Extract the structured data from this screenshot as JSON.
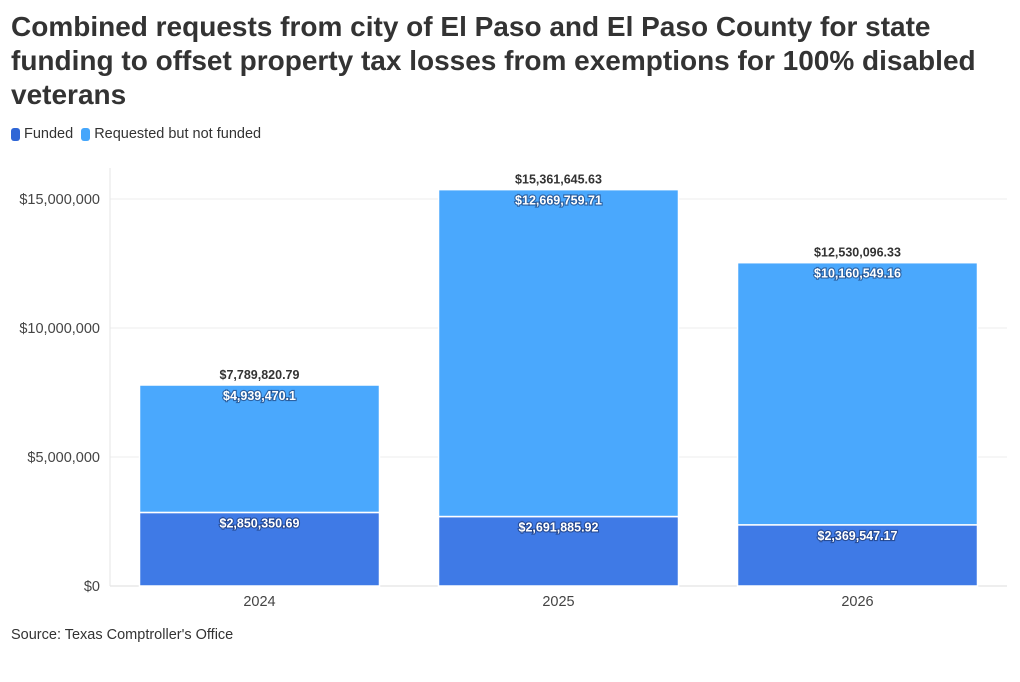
{
  "chart_data": {
    "type": "bar",
    "stacked": true,
    "title": "Combined requests from city of El Paso and El Paso County for state funding to offset property tax losses from exemptions for 100% disabled veterans",
    "categories": [
      "2024",
      "2025",
      "2026"
    ],
    "series": [
      {
        "name": "Funded",
        "color": "#3f7ae6",
        "values": [
          2850350.69,
          2691885.92,
          2369547.17
        ],
        "labels": [
          "$2,850,350.69",
          "$2,691,885.92",
          "$2,369,547.17"
        ]
      },
      {
        "name": "Requested but not funded",
        "color": "#4aa8fd",
        "values": [
          4939470.1,
          12669759.71,
          10160549.16
        ],
        "labels": [
          "$4,939,470.1",
          "$12,669,759.71",
          "$10,160,549.16"
        ]
      }
    ],
    "totals": [
      "$7,789,820.79",
      "$15,361,645.63",
      "$12,530,096.33"
    ],
    "totals_values": [
      7789820.79,
      15361645.63,
      12530096.33
    ],
    "y_ticks": [
      0,
      5000000,
      10000000,
      15000000
    ],
    "y_tick_labels": [
      "$0",
      "$5,000,000",
      "$10,000,000",
      "$15,000,000"
    ],
    "ylim": [
      0,
      16200000
    ],
    "grid": true,
    "legend_position": "top-left",
    "xlabel": "",
    "ylabel": ""
  },
  "legend": {
    "funded": "Funded",
    "not_funded": "Requested but not funded",
    "funded_color": "#2f66d6",
    "not_funded_color": "#45a6fb"
  },
  "source": "Source: Texas Comptroller's Office"
}
